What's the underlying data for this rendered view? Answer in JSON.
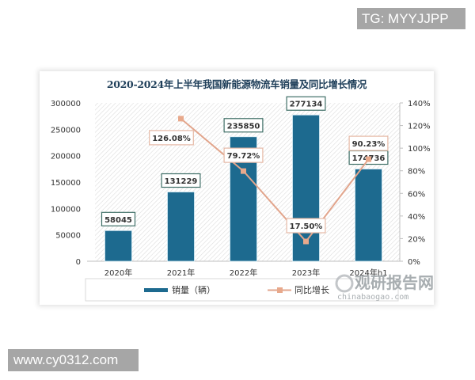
{
  "watermarks": {
    "top_right": "TG: MYYJJPP",
    "bottom_left": "www.cy0312.com",
    "logo_cn": "观研报告网",
    "logo_en": "chinabaogao.com"
  },
  "colors": {
    "bar": "#1d6a8f",
    "line": "#e2a58c",
    "marker": "#e8a98c",
    "title": "#1f3f5a"
  },
  "chart_data": {
    "type": "bar",
    "title": "2020-2024年上半年我国新能源物流车销量及同比增长情况",
    "categories": [
      "2020年",
      "2021年",
      "2022年",
      "2023年",
      "2024年h1"
    ],
    "series": [
      {
        "name": "销量（辆）",
        "type": "bar",
        "axis": "left",
        "values": [
          58045,
          131229,
          235850,
          277134,
          174736
        ],
        "labels": [
          "58045",
          "131229",
          "235850",
          "277134",
          "174736"
        ]
      },
      {
        "name": "同比增长",
        "type": "line",
        "axis": "right",
        "values": [
          null,
          126.08,
          79.72,
          17.5,
          90.23
        ],
        "labels": [
          "",
          "126.08%",
          "79.72%",
          "17.50%",
          "90.23%"
        ]
      }
    ],
    "y_left": {
      "ylim": [
        0,
        300000
      ],
      "ticks": [
        "0",
        "50000",
        "100000",
        "150000",
        "200000",
        "250000",
        "300000"
      ]
    },
    "y_right": {
      "ylim": [
        0,
        140
      ],
      "ticks": [
        "0%",
        "20%",
        "40%",
        "60%",
        "80%",
        "100%",
        "120%",
        "140%"
      ]
    },
    "xlabel": "",
    "ylabel": "",
    "legend": {
      "position": "bottom",
      "entries": [
        "销量（辆）",
        "同比增长"
      ]
    },
    "grid": false
  }
}
